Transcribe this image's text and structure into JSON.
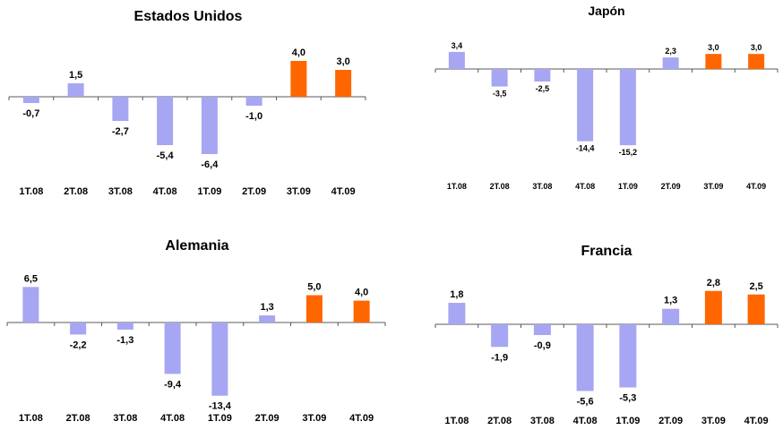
{
  "colors": {
    "actual": "#a6a6f2",
    "forecast": "#ff6600",
    "axis": "#595959"
  },
  "chart_data": [
    {
      "type": "bar",
      "title": "Estados Unidos",
      "categories": [
        "1T.08",
        "2T.08",
        "3T.08",
        "4T.08",
        "1T.09",
        "2T.09",
        "3T.09",
        "4T.09"
      ],
      "values": [
        -0.7,
        1.5,
        -2.7,
        -5.4,
        -6.4,
        -1.0,
        4.0,
        3.0
      ],
      "labels": [
        "-0,7",
        "1,5",
        "-2,7",
        "-5,4",
        "-6,4",
        "-1,0",
        "4,0",
        "3,0"
      ],
      "forecast": [
        false,
        false,
        false,
        false,
        false,
        false,
        true,
        true
      ]
    },
    {
      "type": "bar",
      "title": "Japón",
      "categories": [
        "1T.08",
        "2T.08",
        "3T.08",
        "4T.08",
        "1T.09",
        "2T.09",
        "3T.09",
        "4T.09"
      ],
      "values": [
        3.4,
        -3.5,
        -2.5,
        -14.4,
        -15.2,
        2.3,
        3.0,
        3.0
      ],
      "labels": [
        "3,4",
        "-3,5",
        "-2,5",
        "-14,4",
        "-15,2",
        "2,3",
        "3,0",
        "3,0"
      ],
      "forecast": [
        false,
        false,
        false,
        false,
        false,
        false,
        true,
        true
      ]
    },
    {
      "type": "bar",
      "title": "Alemania",
      "categories": [
        "1T.08",
        "2T.08",
        "3T.08",
        "4T.08",
        "1T.09",
        "2T.09",
        "3T.09",
        "4T.09"
      ],
      "values": [
        6.5,
        -2.2,
        -1.3,
        -9.4,
        -13.4,
        1.3,
        5.0,
        4.0
      ],
      "labels": [
        "6,5",
        "-2,2",
        "-1,3",
        "-9,4",
        "-13,4",
        "1,3",
        "5,0",
        "4,0"
      ],
      "forecast": [
        false,
        false,
        false,
        false,
        false,
        false,
        true,
        true
      ]
    },
    {
      "type": "bar",
      "title": "Francia",
      "categories": [
        "1T.08",
        "2T.08",
        "3T.08",
        "4T.08",
        "1T.09",
        "2T.09",
        "3T.09",
        "4T.09"
      ],
      "values": [
        1.8,
        -1.9,
        -0.9,
        -5.6,
        -5.3,
        1.3,
        2.8,
        2.5
      ],
      "labels": [
        "1,8",
        "-1,9",
        "-0,9",
        "-5,6",
        "-5,3",
        "1,3",
        "2,8",
        "2,5"
      ],
      "forecast": [
        false,
        false,
        false,
        false,
        false,
        false,
        true,
        true
      ]
    }
  ]
}
